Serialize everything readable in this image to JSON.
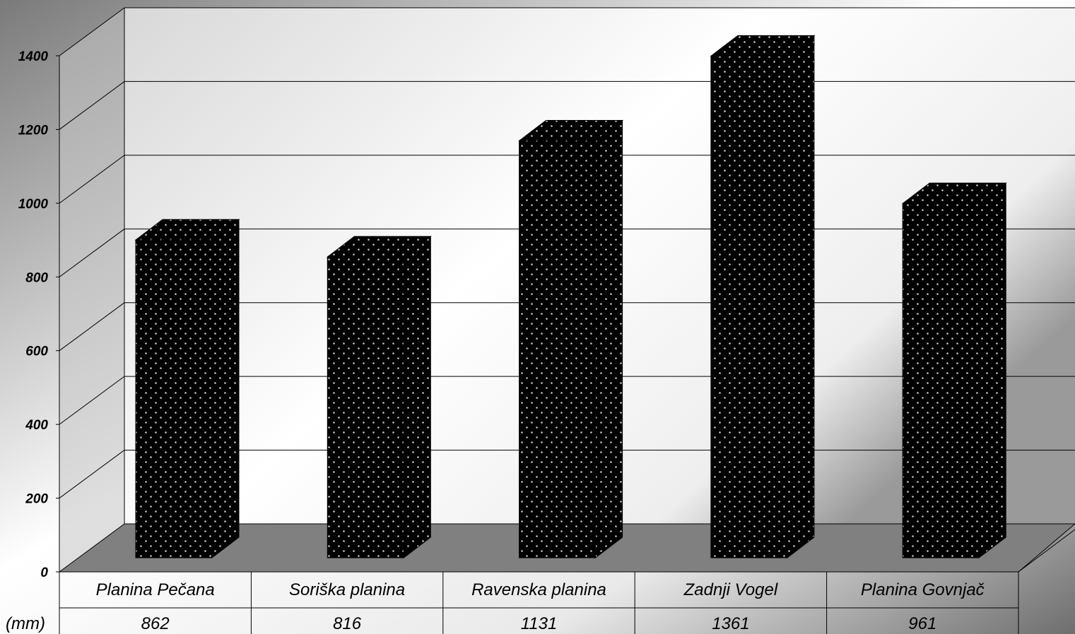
{
  "chart_data": {
    "type": "bar",
    "categories": [
      "Planina Pečana",
      "Soriška planina",
      "Ravenska planina",
      "Zadnji Vogel",
      "Planina Govnjač"
    ],
    "values": [
      862,
      816,
      1131,
      1361,
      961
    ],
    "value_labels": [
      "862",
      "816",
      "1131",
      "1361",
      "961"
    ],
    "unit_label": "(mm)",
    "ylim": [
      0,
      1400
    ],
    "yticks": [
      "0",
      "200",
      "400",
      "600",
      "800",
      "1000",
      "1200",
      "1400"
    ],
    "grid": true,
    "style": "3d-bar-with-data-table",
    "colors": {
      "bar": "#000000",
      "bar_dots": "#bfbfbf",
      "floor": "#808080"
    }
  }
}
